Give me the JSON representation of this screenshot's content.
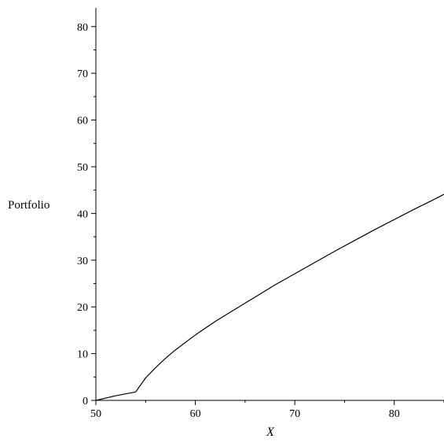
{
  "chart_data": {
    "type": "line",
    "title": "",
    "xlabel": "X",
    "ylabel": "Portfolio",
    "xlim": [
      50,
      85
    ],
    "ylim": [
      0,
      84
    ],
    "grid": false,
    "x_ticks": [
      50,
      60,
      70,
      80
    ],
    "x_tick_labels": [
      "50",
      "60",
      "70",
      "80"
    ],
    "y_ticks": [
      0,
      10,
      20,
      30,
      40,
      50,
      60,
      70,
      80
    ],
    "y_tick_labels": [
      "0",
      "10",
      "20",
      "30",
      "40",
      "50",
      "60",
      "70",
      "80"
    ],
    "series": [
      {
        "color": "#000000",
        "x": [
          50,
          51,
          52,
          53,
          54,
          55,
          56,
          57,
          58,
          60,
          62,
          64,
          66,
          68,
          70,
          72,
          74,
          76,
          78,
          80,
          82,
          84,
          85
        ],
        "y": [
          0,
          0.5,
          1.0,
          1.4,
          1.8,
          4.8,
          7.0,
          9.0,
          10.8,
          14.0,
          16.9,
          19.5,
          22.1,
          24.7,
          27.1,
          29.5,
          31.9,
          34.2,
          36.5,
          38.7,
          40.9,
          43.0,
          44.1
        ]
      }
    ]
  }
}
